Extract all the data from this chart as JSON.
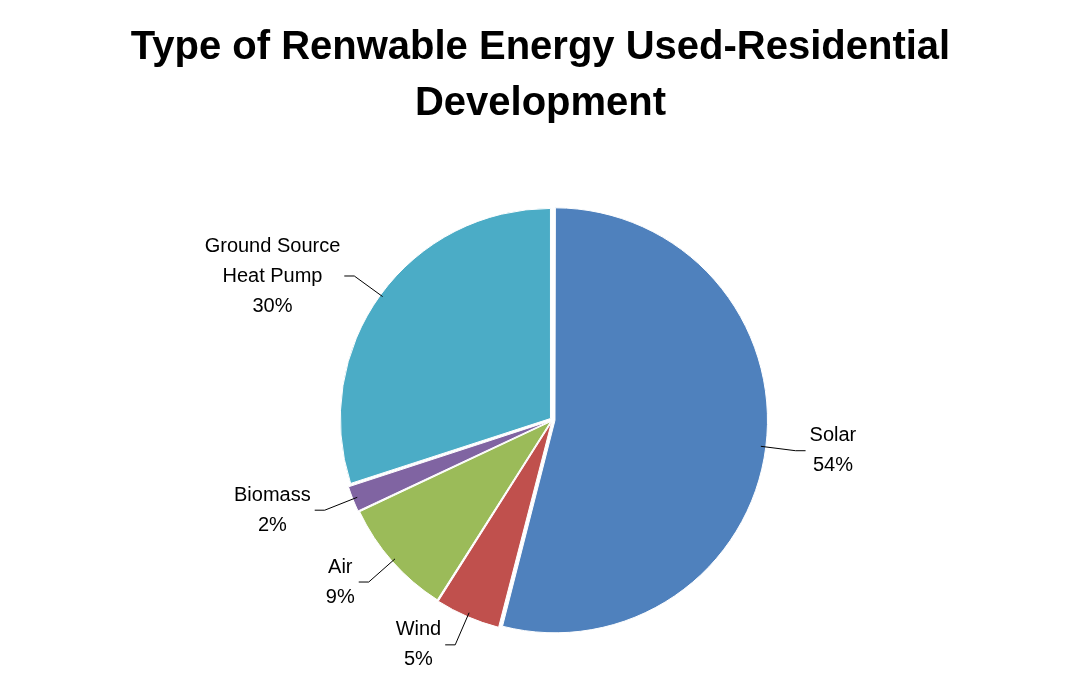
{
  "chart_data": {
    "type": "pie",
    "title": "Type of Renwable Energy Used-Residential Development",
    "categories": [
      "Solar",
      "Wind",
      "Air",
      "Biomass",
      "Ground Source Heat Pump"
    ],
    "values": [
      54,
      5,
      9,
      2,
      30
    ],
    "colors": [
      "#4f81bd",
      "#c0504d",
      "#9bbb59",
      "#8064a2",
      "#4bacc6"
    ],
    "value_labels": [
      "54%",
      "5%",
      "9%",
      "2%",
      "30%"
    ],
    "legend": false
  }
}
